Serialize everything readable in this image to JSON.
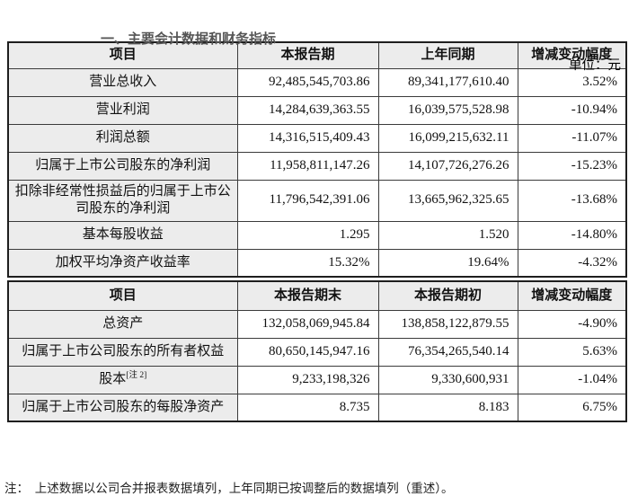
{
  "page": {
    "top_clipped_heading": "一、主要会计数据和财务指标",
    "unit_label": "单位：元",
    "footnote": "注：  上述数据以公司合并报表数据填列，上年同期已按调整后的数据填列（重述）。"
  },
  "table1": {
    "headers": [
      "项目",
      "本报告期",
      "上年同期",
      "增减变动幅度"
    ],
    "rows": [
      {
        "item": "营业总收入",
        "v1": "92,485,545,703.86",
        "v2": "89,341,177,610.40",
        "change": "3.52%"
      },
      {
        "item": "营业利润",
        "v1": "14,284,639,363.55",
        "v2": "16,039,575,528.98",
        "change": "-10.94%"
      },
      {
        "item": "利润总额",
        "v1": "14,316,515,409.43",
        "v2": "16,099,215,632.11",
        "change": "-11.07%"
      },
      {
        "item": "归属于上市公司股东的净利润",
        "v1": "11,958,811,147.26",
        "v2": "14,107,726,276.26",
        "change": "-15.23%"
      },
      {
        "item": "扣除非经常性损益后的归属于上市公司股东的净利润",
        "v1": "11,796,542,391.06",
        "v2": "13,665,962,325.65",
        "change": "-13.68%"
      },
      {
        "item": "基本每股收益",
        "v1": "1.295",
        "v2": "1.520",
        "change": "-14.80%"
      },
      {
        "item": "加权平均净资产收益率",
        "v1": "15.32%",
        "v2": "19.64%",
        "change": "-4.32%"
      }
    ]
  },
  "table2": {
    "headers": [
      "项目",
      "本报告期末",
      "本报告期初",
      "增减变动幅度"
    ],
    "rows": [
      {
        "item": "总资产",
        "v1": "132,058,069,945.84",
        "v2": "138,858,122,879.55",
        "change": "-4.90%"
      },
      {
        "item": "归属于上市公司股东的所有者权益",
        "v1": "80,650,145,947.16",
        "v2": "76,354,265,540.14",
        "change": "5.63%"
      },
      {
        "item": "股本",
        "item_sup": "[注 2]",
        "v1": "9,233,198,326",
        "v2": "9,330,600,931",
        "change": "-1.04%"
      },
      {
        "item": "归属于上市公司股东的每股净资产",
        "v1": "8.735",
        "v2": "8.183",
        "change": "6.75%"
      }
    ]
  }
}
